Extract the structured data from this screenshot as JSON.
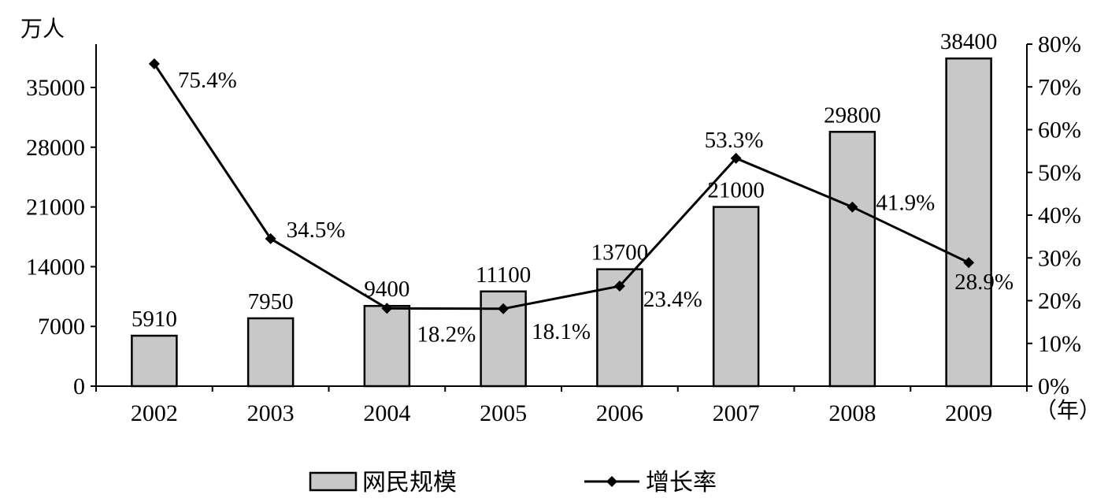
{
  "chart_data": {
    "type": "bar",
    "title": "",
    "categories": [
      "2002",
      "2003",
      "2004",
      "2005",
      "2006",
      "2007",
      "2008",
      "2009"
    ],
    "x_unit": "（年）",
    "left_axis": {
      "unit": "万人",
      "range": [
        0,
        38400
      ],
      "ticks": [
        "0",
        "7000",
        "14000",
        "21000",
        "28000",
        "35000"
      ]
    },
    "right_axis": {
      "range": [
        0,
        80
      ],
      "ticks": [
        "0%",
        "10%",
        "20%",
        "30%",
        "40%",
        "50%",
        "60%",
        "70%",
        "80%"
      ]
    },
    "series": [
      {
        "name": "网民规模",
        "type": "bar",
        "axis": "left",
        "values": [
          5910,
          7950,
          9400,
          11100,
          13700,
          21000,
          29800,
          38400
        ],
        "labels": [
          "5910",
          "7950",
          "9400",
          "11100",
          "13700",
          "21000",
          "29800",
          "38400"
        ]
      },
      {
        "name": "增长率",
        "type": "line",
        "axis": "right",
        "values": [
          75.4,
          34.5,
          18.2,
          18.1,
          23.4,
          53.3,
          41.9,
          28.9
        ],
        "labels": [
          "75.4%",
          "34.5%",
          "18.2%",
          "18.1%",
          "23.4%",
          "53.3%",
          "41.9%",
          "28.9%"
        ]
      }
    ],
    "legend": {
      "position": "bottom",
      "items": [
        "网民规模",
        "增长率"
      ]
    },
    "grid": false,
    "colors": {
      "bar_fill": "#c8c8c8",
      "line": "#000000"
    }
  }
}
